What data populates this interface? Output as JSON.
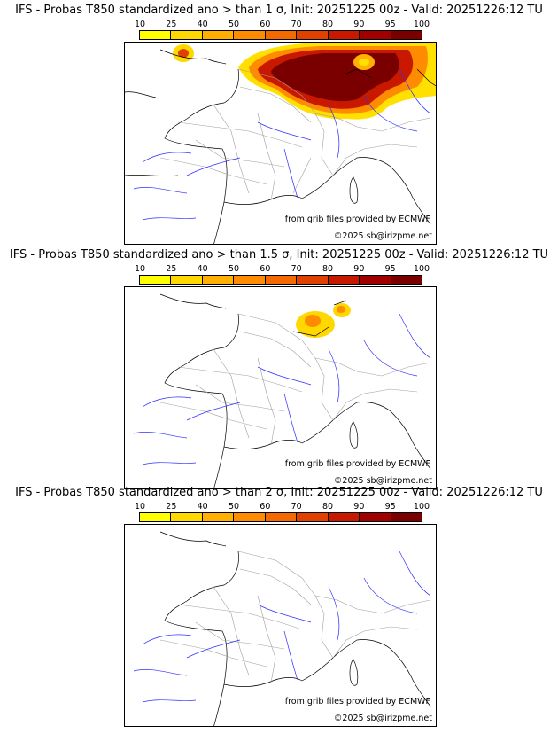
{
  "colorbar": {
    "ticks": [
      "10",
      "25",
      "40",
      "50",
      "60",
      "70",
      "80",
      "90",
      "95",
      "100"
    ],
    "colors": [
      "#ffff00",
      "#ffd800",
      "#ffb000",
      "#ff8c00",
      "#f56a00",
      "#e04000",
      "#c81800",
      "#a00000",
      "#7a0000"
    ]
  },
  "panels": [
    {
      "title": "IFS - Probas T850  standardized ano > than 1 σ, Init: 20251225 00z - Valid: 20251226:12 TU",
      "sigma": "1",
      "anomaly": "strong"
    },
    {
      "title": "IFS - Probas T850  standardized ano > than 1.5 σ, Init: 20251225 00z - Valid: 20251226:12 TU",
      "sigma": "1.5",
      "anomaly": "weak"
    },
    {
      "title": "IFS - Probas T850  standardized ano > than 2 σ, Init: 20251225 00z - Valid: 20251226:12 TU",
      "sigma": "2",
      "anomaly": "none"
    }
  ],
  "credits": {
    "source": "from grib files provided by ECMWF",
    "copyright": "©2025 sb@irizpme.net"
  }
}
